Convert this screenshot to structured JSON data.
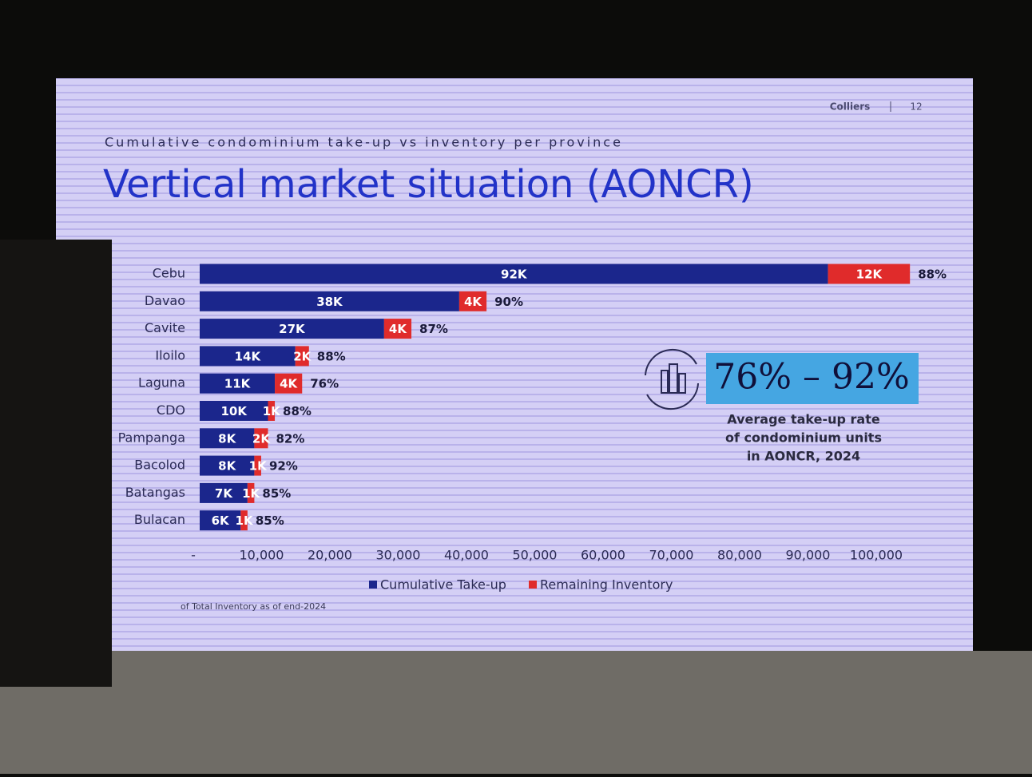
{
  "header": {
    "brand": "Colliers",
    "page": "12"
  },
  "chart_data": {
    "type": "stacked-barh",
    "subtitle": "Cumulative condominium take-up vs inventory per province",
    "title": "Vertical market situation (AONCR)",
    "categories": [
      "Cebu",
      "Davao",
      "Cavite",
      "Iloilo",
      "Laguna",
      "CDO",
      "Pampanga",
      "Bacolod",
      "Batangas",
      "Bulacan"
    ],
    "series": [
      {
        "name": "Cumulative Take-up",
        "color": "#1b268c",
        "values": [
          92000,
          38000,
          27000,
          14000,
          11000,
          10000,
          8000,
          8000,
          7000,
          6000
        ],
        "value_labels": [
          "92K",
          "38K",
          "27K",
          "14K",
          "11K",
          "10K",
          "8K",
          "8K",
          "7K",
          "6K"
        ]
      },
      {
        "name": "Remaining Inventory",
        "color": "#e02b2b",
        "values": [
          12000,
          4000,
          4000,
          2000,
          4000,
          1000,
          2000,
          1000,
          1000,
          1000
        ],
        "value_labels": [
          "12K",
          "4K",
          "4K",
          "2K",
          "4K",
          "1K",
          "2K",
          "1K",
          "1K",
          "1K"
        ]
      }
    ],
    "take_up_rate": {
      "values": [
        88,
        90,
        87,
        88,
        76,
        88,
        82,
        92,
        85,
        85
      ],
      "value_labels": [
        "88%",
        "90%",
        "87%",
        "88%",
        "76%",
        "88%",
        "82%",
        "92%",
        "85%",
        "85%"
      ]
    },
    "xlim": [
      0,
      100000
    ],
    "xticks": [
      {
        "value": 0,
        "label": "-"
      },
      {
        "value": 10000,
        "label": "10,000"
      },
      {
        "value": 20000,
        "label": "20,000"
      },
      {
        "value": 30000,
        "label": "30,000"
      },
      {
        "value": 40000,
        "label": "40,000"
      },
      {
        "value": 50000,
        "label": "50,000"
      },
      {
        "value": 60000,
        "label": "60,000"
      },
      {
        "value": 70000,
        "label": "70,000"
      },
      {
        "value": 80000,
        "label": "80,000"
      },
      {
        "value": 90000,
        "label": "90,000"
      },
      {
        "value": 100000,
        "label": "100,000"
      }
    ],
    "legend": "bottom",
    "footnote": "of Total Inventory as of end-2024"
  },
  "callout": {
    "range": "76% – 92%",
    "lines": [
      "Average take-up rate",
      "of condominium units",
      "in AONCR, 2024"
    ]
  }
}
